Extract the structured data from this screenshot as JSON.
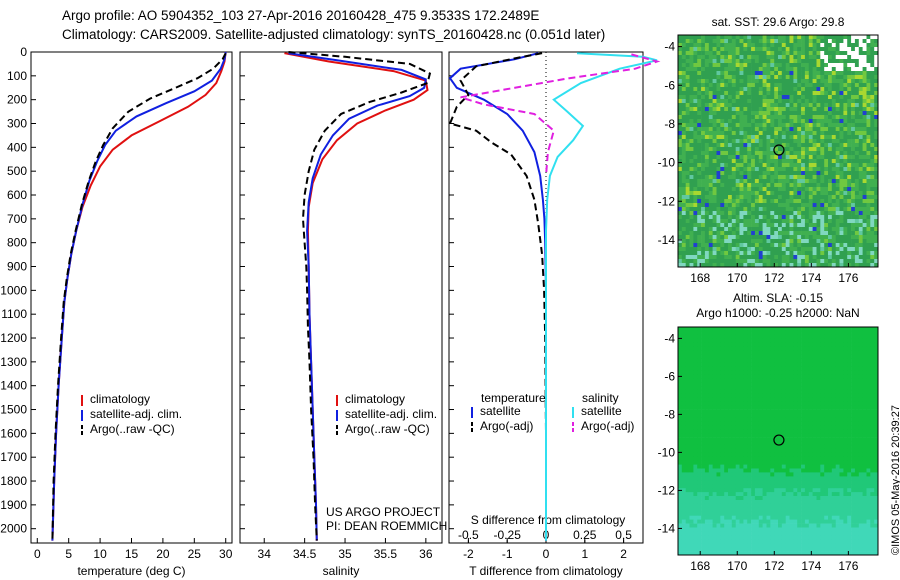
{
  "header": {
    "line1": "Argo profile: AO 5904352_103 27-Apr-2016 20160428_475 9.3533S 172.2489E",
    "line2": "Climatology: CARS2009. Satellite-adjusted climatology: synTS_20160428.nc (0.051d later)"
  },
  "colors": {
    "climatology": "#e01010",
    "satellite": "#1020e0",
    "argo": "#000000",
    "s_satellite": "#30e0f0",
    "s_argo": "#e020e0"
  },
  "chart_data": [
    {
      "id": "temperature",
      "type": "line",
      "xlabel": "temperature (deg C)",
      "ylabel": "",
      "xlim": [
        -1,
        31
      ],
      "ylim": [
        2060,
        0
      ],
      "xticks": [
        0,
        5,
        10,
        15,
        20,
        25,
        30
      ],
      "yticks": [
        0,
        100,
        200,
        300,
        400,
        500,
        600,
        700,
        800,
        900,
        1000,
        1100,
        1200,
        1300,
        1400,
        1500,
        1600,
        1700,
        1800,
        1900,
        2000
      ],
      "legend": [
        "climatology",
        "satellite-adj. clim.",
        "Argo(..raw -QC)"
      ],
      "series": [
        {
          "name": "climatology",
          "color": "#e01010",
          "dash": false,
          "points": [
            [
              30,
              0
            ],
            [
              29.8,
              40
            ],
            [
              29.3,
              80
            ],
            [
              28.5,
              130
            ],
            [
              26.8,
              180
            ],
            [
              24,
              230
            ],
            [
              19.5,
              290
            ],
            [
              15,
              350
            ],
            [
              12,
              410
            ],
            [
              10,
              480
            ],
            [
              8.5,
              560
            ],
            [
              7.2,
              650
            ],
            [
              6.2,
              750
            ],
            [
              5.4,
              850
            ],
            [
              4.8,
              950
            ],
            [
              4.3,
              1050
            ],
            [
              3.9,
              1200
            ],
            [
              3.4,
              1400
            ],
            [
              3,
              1600
            ],
            [
              2.7,
              1800
            ],
            [
              2.4,
              2050
            ]
          ]
        },
        {
          "name": "satellite-adj. clim.",
          "color": "#1020e0",
          "dash": false,
          "points": [
            [
              30,
              0
            ],
            [
              29.8,
              30
            ],
            [
              29.2,
              70
            ],
            [
              27.8,
              120
            ],
            [
              25,
              165
            ],
            [
              20.5,
              215
            ],
            [
              15.8,
              270
            ],
            [
              12.5,
              330
            ],
            [
              10.8,
              390
            ],
            [
              9.5,
              460
            ],
            [
              8.3,
              540
            ],
            [
              7.2,
              640
            ],
            [
              6.2,
              750
            ],
            [
              5.4,
              850
            ],
            [
              4.8,
              950
            ],
            [
              4.3,
              1050
            ],
            [
              3.9,
              1200
            ],
            [
              3.4,
              1400
            ],
            [
              3,
              1600
            ],
            [
              2.7,
              1800
            ],
            [
              2.4,
              2050
            ]
          ]
        },
        {
          "name": "Argo(..raw -QC)",
          "color": "#000000",
          "dash": true,
          "points": [
            [
              30,
              5
            ],
            [
              29.5,
              30
            ],
            [
              28,
              70
            ],
            [
              25.5,
              110
            ],
            [
              22,
              150
            ],
            [
              18,
              195
            ],
            [
              14.5,
              250
            ],
            [
              12,
              320
            ],
            [
              10.5,
              390
            ],
            [
              9.3,
              460
            ],
            [
              8.2,
              540
            ],
            [
              7.1,
              640
            ],
            [
              6.1,
              750
            ],
            [
              5.3,
              850
            ],
            [
              4.7,
              950
            ],
            [
              4.2,
              1050
            ],
            [
              3.8,
              1200
            ],
            [
              3.3,
              1400
            ],
            [
              2.9,
              1600
            ],
            [
              2.6,
              1800
            ],
            [
              2.4,
              2050
            ]
          ]
        }
      ]
    },
    {
      "id": "salinity",
      "type": "line",
      "xlabel": "salinity",
      "ylabel": "",
      "xlim": [
        33.7,
        36.2
      ],
      "ylim": [
        2060,
        0
      ],
      "xticks": [
        34,
        34.5,
        35,
        35.5,
        36
      ],
      "xticklabels": [
        "34",
        "34.5",
        "35",
        "35.5",
        "36"
      ],
      "legend": [
        "climatology",
        "satellite-adj. clim.",
        "Argo(..raw -QC)"
      ],
      "annotation": [
        "US ARGO PROJECT",
        "PI: DEAN ROEMMICH"
      ],
      "series": [
        {
          "name": "climatology",
          "color": "#e01010",
          "dash": false,
          "points": [
            [
              34.25,
              5
            ],
            [
              34.8,
              40
            ],
            [
              35.6,
              80
            ],
            [
              36,
              120
            ],
            [
              36.02,
              160
            ],
            [
              35.85,
              200
            ],
            [
              35.5,
              245
            ],
            [
              35.15,
              300
            ],
            [
              34.9,
              370
            ],
            [
              34.72,
              450
            ],
            [
              34.6,
              550
            ],
            [
              34.55,
              650
            ],
            [
              34.54,
              750
            ],
            [
              34.55,
              900
            ],
            [
              34.56,
              1100
            ],
            [
              34.58,
              1300
            ],
            [
              34.6,
              1500
            ],
            [
              34.62,
              1700
            ],
            [
              34.64,
              1900
            ],
            [
              34.65,
              2050
            ]
          ]
        },
        {
          "name": "satellite-adj. clim.",
          "color": "#1020e0",
          "dash": false,
          "points": [
            [
              34.3,
              5
            ],
            [
              34.9,
              35
            ],
            [
              35.7,
              75
            ],
            [
              36,
              115
            ],
            [
              35.98,
              150
            ],
            [
              35.8,
              185
            ],
            [
              35.4,
              225
            ],
            [
              35.05,
              280
            ],
            [
              34.85,
              350
            ],
            [
              34.7,
              430
            ],
            [
              34.6,
              530
            ],
            [
              34.55,
              630
            ],
            [
              34.53,
              750
            ],
            [
              34.55,
              900
            ],
            [
              34.56,
              1100
            ],
            [
              34.58,
              1300
            ],
            [
              34.6,
              1500
            ],
            [
              34.62,
              1700
            ],
            [
              34.64,
              1900
            ],
            [
              34.65,
              2050
            ]
          ]
        },
        {
          "name": "Argo(..raw -QC)",
          "color": "#000000",
          "dash": true,
          "points": [
            [
              34.3,
              0
            ],
            [
              35,
              20
            ],
            [
              35.8,
              50
            ],
            [
              36.05,
              90
            ],
            [
              36.02,
              130
            ],
            [
              35.7,
              170
            ],
            [
              35.3,
              210
            ],
            [
              34.95,
              260
            ],
            [
              34.75,
              330
            ],
            [
              34.62,
              410
            ],
            [
              34.55,
              500
            ],
            [
              34.5,
              600
            ],
            [
              34.48,
              700
            ],
            [
              34.5,
              800
            ],
            [
              34.52,
              900
            ],
            [
              34.53,
              1000
            ],
            [
              34.54,
              1150
            ],
            [
              34.56,
              1300
            ],
            [
              34.58,
              1500
            ],
            [
              34.61,
              1700
            ],
            [
              34.63,
              1900
            ],
            [
              34.65,
              2050
            ]
          ]
        }
      ]
    },
    {
      "id": "difference",
      "type": "line",
      "xlabel": "T difference from climatology",
      "top_label": "S difference from climatology",
      "xlim": [
        -2.5,
        2.5
      ],
      "ylim": [
        2060,
        0
      ],
      "xticks": [
        -2,
        -1,
        0,
        1,
        2
      ],
      "top_xticks": [
        -0.5,
        -0.25,
        0,
        0.25,
        0.5
      ],
      "top_xticklabels": [
        "-0.5",
        "-0.25",
        "0",
        "0.25",
        "0.5"
      ],
      "legend_temperature": [
        "temperature",
        "satellite",
        "Argo(-adj)"
      ],
      "legend_salinity": [
        "salinity",
        "satellite",
        "Argo(-adj)"
      ],
      "series": [
        {
          "name": "T satellite",
          "color": "#1020e0",
          "dash": false,
          "points": [
            [
              -0.2,
              5
            ],
            [
              -0.8,
              30
            ],
            [
              -2.2,
              70
            ],
            [
              -2.6,
              110
            ],
            [
              -2.3,
              150
            ],
            [
              -1.6,
              200
            ],
            [
              -1,
              260
            ],
            [
              -0.6,
              330
            ],
            [
              -0.3,
              420
            ],
            [
              -0.15,
              520
            ],
            [
              -0.08,
              620
            ],
            [
              -0.04,
              700
            ],
            [
              -0.02,
              800
            ],
            [
              0,
              1000
            ],
            [
              0,
              1200
            ],
            [
              0,
              1600
            ],
            [
              0,
              2050
            ]
          ]
        },
        {
          "name": "T Argo(-adj)",
          "color": "#000000",
          "dash": true,
          "points": [
            [
              -0.1,
              5
            ],
            [
              -0.6,
              20
            ],
            [
              -1.8,
              60
            ],
            [
              -2.2,
              120
            ],
            [
              -2,
              180
            ],
            [
              -2.3,
              230
            ],
            [
              -2.6,
              300
            ],
            [
              -1.8,
              330
            ],
            [
              -1.4,
              380
            ],
            [
              -0.9,
              430
            ],
            [
              -0.5,
              520
            ],
            [
              -0.3,
              620
            ],
            [
              -0.2,
              720
            ],
            [
              -0.1,
              850
            ],
            [
              -0.05,
              1000
            ],
            [
              -0.02,
              1200
            ],
            [
              0,
              1600
            ],
            [
              0,
              2050
            ]
          ]
        },
        {
          "name": "S satellite",
          "color": "#30e0f0",
          "dash": false,
          "points": [
            [
              0.8,
              5
            ],
            [
              2.5,
              20
            ],
            [
              3,
              35
            ],
            [
              1.9,
              70
            ],
            [
              0.9,
              130
            ],
            [
              0.2,
              200
            ],
            [
              0.55,
              250
            ],
            [
              0.95,
              310
            ],
            [
              0.7,
              370
            ],
            [
              0.3,
              440
            ],
            [
              0.1,
              520
            ],
            [
              0.03,
              620
            ],
            [
              0,
              750
            ],
            [
              0,
              1000
            ],
            [
              0,
              1300
            ],
            [
              0,
              1600
            ],
            [
              0,
              1800
            ],
            [
              0,
              2050
            ]
          ]
        },
        {
          "name": "S Argo(-adj)",
          "color": "#e020e0",
          "dash": true,
          "points": [
            [
              2.2,
              10
            ],
            [
              3,
              40
            ],
            [
              2.3,
              70
            ],
            [
              0.6,
              110
            ],
            [
              -2.2,
              190
            ],
            [
              -1.6,
              220
            ],
            [
              -0.3,
              260
            ],
            [
              0.2,
              330
            ],
            [
              0.05,
              420
            ],
            [
              0,
              520
            ]
          ]
        }
      ]
    },
    {
      "id": "sst_map",
      "type": "heatmap",
      "title": "sat. SST: 29.6  Argo: 29.8",
      "xticks": [
        168,
        170,
        172,
        174,
        176
      ],
      "yticks": [
        -4,
        -6,
        -8,
        -10,
        -12,
        -14
      ],
      "xlim": [
        166.8,
        177.6
      ],
      "ylim": [
        -15.4,
        -3.4
      ],
      "marker": [
        172.25,
        -9.35
      ]
    },
    {
      "id": "sla_map",
      "type": "heatmap",
      "title": "Altim. SLA: -0.15",
      "subtitle": "Argo h1000: -0.25 h2000: NaN",
      "xticks": [
        168,
        170,
        172,
        174,
        176
      ],
      "yticks": [
        -4,
        -6,
        -8,
        -10,
        -12,
        -14
      ],
      "xlim": [
        166.8,
        177.6
      ],
      "ylim": [
        -15.4,
        -3.4
      ],
      "marker": [
        172.25,
        -9.35
      ]
    }
  ],
  "stamp": "©IMOS 05-May-2016 20:39:27"
}
